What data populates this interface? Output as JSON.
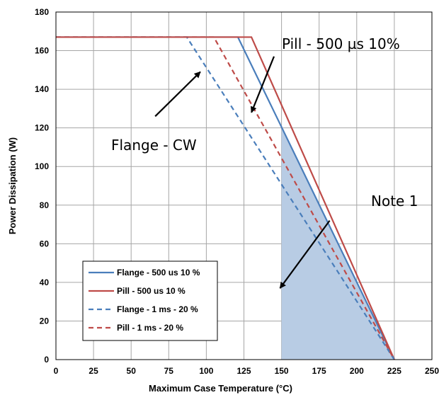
{
  "chart_data": {
    "type": "line",
    "xlabel": "Maximum Case Temperature (°C)",
    "ylabel": "Power Dissipation (W)",
    "xlim": [
      0,
      250
    ],
    "ylim": [
      0,
      180
    ],
    "xticks": [
      0,
      25,
      50,
      75,
      100,
      125,
      150,
      175,
      200,
      225,
      250
    ],
    "yticks": [
      0,
      20,
      40,
      60,
      80,
      100,
      120,
      140,
      160,
      180
    ],
    "grid": true,
    "legend_position": "bottom-left",
    "series": [
      {
        "name": "Flange - 500 us 10 %",
        "color": "#4A7EBB",
        "dash": "solid",
        "x": [
          0,
          121,
          225
        ],
        "y": [
          167,
          167,
          0
        ]
      },
      {
        "name": "Pill - 500 us 10 %",
        "color": "#BE4B48",
        "dash": "solid",
        "x": [
          0,
          130,
          225
        ],
        "y": [
          167,
          167,
          0
        ]
      },
      {
        "name": "Flange - 1 ms - 20 %",
        "color": "#4A7EBB",
        "dash": "dashed",
        "x": [
          0,
          87,
          225
        ],
        "y": [
          167,
          167,
          0
        ]
      },
      {
        "name": "Pill - 1 ms - 20 %",
        "color": "#BE4B48",
        "dash": "dashed",
        "x": [
          0,
          105,
          225
        ],
        "y": [
          167,
          167,
          0
        ]
      }
    ],
    "shaded_region": {
      "color": "#B8CCE4",
      "x": [
        150,
        150,
        225
      ],
      "y": [
        0,
        120,
        0
      ]
    },
    "annotations": [
      {
        "text": "Pill - 500 µs 10%",
        "text_pos": [
          150,
          163
        ],
        "arrow_from": [
          145,
          157
        ],
        "arrow_to": [
          130,
          128
        ]
      },
      {
        "text": "Flange - CW",
        "text_pos": [
          110,
          114
        ],
        "arrow_from": [
          66,
          126
        ],
        "arrow_to": [
          96,
          149
        ]
      },
      {
        "text": "Note 1",
        "text_pos": [
          150,
          80
        ],
        "arrow_from": [
          182,
          72
        ],
        "arrow_to": [
          149,
          37
        ]
      }
    ]
  }
}
